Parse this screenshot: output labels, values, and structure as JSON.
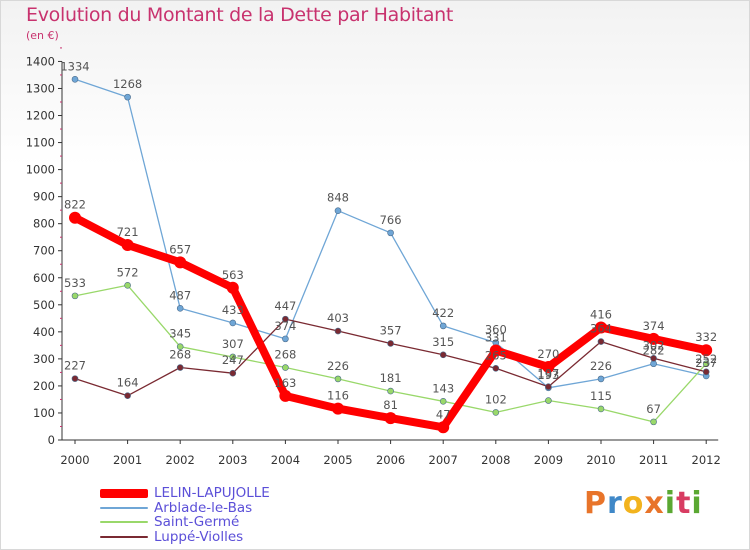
{
  "chart_data": {
    "type": "line",
    "title": "Evolution du Montant de la Dette par Habitant",
    "unit": "(en €)",
    "x": [
      "2000",
      "2001",
      "2002",
      "2003",
      "2004",
      "2005",
      "2006",
      "2007",
      "2008",
      "2009",
      "2010",
      "2011",
      "2012"
    ],
    "yticks": [
      0,
      100,
      200,
      300,
      400,
      500,
      600,
      700,
      800,
      900,
      1000,
      1100,
      1200,
      1300,
      1400
    ],
    "ylim": [
      0,
      1400
    ],
    "grid": false,
    "legend_position": "bottom-left",
    "series": [
      {
        "name": "Arblade-le-Bas",
        "color": "#6fa6d6",
        "values": [
          1334,
          1268,
          487,
          433,
          374,
          848,
          766,
          422,
          360,
          193,
          226,
          282,
          237
        ]
      },
      {
        "name": "Saint-Germé",
        "color": "#99d86a",
        "values": [
          533,
          572,
          345,
          307,
          268,
          226,
          181,
          143,
          102,
          146,
          115,
          67,
          282
        ]
      },
      {
        "name": "Luppé-Violles",
        "color": "#7a2a32",
        "values": [
          227,
          164,
          268,
          247,
          447,
          403,
          357,
          315,
          265,
          197,
          364,
          302,
          252
        ]
      },
      {
        "name": "LELIN-LAPUJOLLE",
        "color": "#ff0000",
        "values": [
          822,
          721,
          657,
          563,
          163,
          116,
          81,
          47,
          331,
          270,
          416,
          374,
          332
        ]
      }
    ],
    "labels": [
      {
        "series": 0,
        "labels": [
          "1334",
          "1268",
          "487",
          "433",
          "374",
          "848",
          "766",
          "422",
          "360",
          "193",
          "226",
          "282",
          "237"
        ]
      },
      {
        "series": 1,
        "labels": [
          "533",
          "572",
          "345",
          "307",
          "268",
          "226",
          "181",
          "143",
          "102",
          "",
          "115",
          "67",
          ""
        ]
      },
      {
        "series": 2,
        "labels": [
          "227",
          "164",
          "268",
          "247",
          "447",
          "403",
          "357",
          "315",
          "265",
          "197",
          "364",
          "302",
          "252"
        ]
      },
      {
        "series": 3,
        "labels": [
          "822",
          "721",
          "657",
          "563",
          "163",
          "116",
          "81",
          "47",
          "331",
          "270",
          "416",
          "374",
          "332"
        ]
      }
    ]
  },
  "legend": [
    {
      "name": "LELIN-LAPUJOLLE",
      "color": "#ff0000",
      "text_color": "#5b4fd8"
    },
    {
      "name": "Arblade-le-Bas",
      "color": "#6fa6d6",
      "text_color": "#5b4fd8"
    },
    {
      "name": "Saint-Germé",
      "color": "#99d86a",
      "text_color": "#5b4fd8"
    },
    {
      "name": "Luppé-Violles",
      "color": "#7a2a32",
      "text_color": "#5b4fd8"
    }
  ],
  "logo": {
    "text": "Proxiti"
  }
}
